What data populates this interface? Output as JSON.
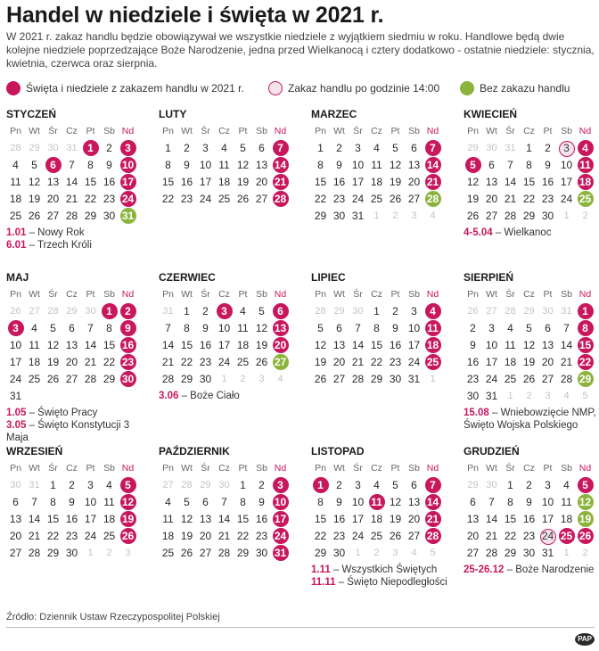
{
  "title": "Handel w niedziele i święta w 2021 r.",
  "intro": "W 2021 r. zakaz handlu będzie obowiązywał we wszystkie niedziele z wyjątkiem siedmiu w roku. Handlowe będą dwie kolejne niedziele poprzedzające Boże Narodzenie, jedna przed Wielkanocą i cztery dodatkowo - ostatnie niedziele: stycznia, kwietnia, czerwca oraz sierpnia.",
  "legend": {
    "red": "Święta i niedziele z zakazem handlu w 2021 r.",
    "ring": "Zakaz handlu po godzinie 14:00",
    "green": "Bez zakazu handlu"
  },
  "colors": {
    "red": "#c8175d",
    "green": "#8cb33c"
  },
  "weekdays": [
    "Pn",
    "Wt",
    "Śr",
    "Cz",
    "Pt",
    "Sb",
    "Nd"
  ],
  "months": [
    {
      "name": "STYCZEŃ",
      "weeks": [
        [
          "28",
          "29",
          "30",
          "31",
          "1",
          "2",
          "3"
        ],
        [
          "4",
          "5",
          "6",
          "7",
          "8",
          "9",
          "10"
        ],
        [
          "11",
          "12",
          "13",
          "14",
          "15",
          "16",
          "17"
        ],
        [
          "18",
          "19",
          "20",
          "21",
          "22",
          "23",
          "24"
        ],
        [
          "25",
          "26",
          "27",
          "28",
          "29",
          "30",
          "31"
        ]
      ],
      "states": [
        [
          "o",
          "o",
          "o",
          "o",
          "r",
          "",
          "r"
        ],
        [
          "",
          "",
          "r",
          "",
          "",
          "",
          "r"
        ],
        [
          "",
          "",
          "",
          "",
          "",
          "",
          "r"
        ],
        [
          "",
          "",
          "",
          "",
          "",
          "",
          "r"
        ],
        [
          "",
          "",
          "",
          "",
          "",
          "",
          "g"
        ]
      ],
      "notes": [
        {
          "date": "1.01",
          "text": " – Nowy Rok"
        },
        {
          "date": "6.01",
          "text": " – Trzech Króli"
        }
      ]
    },
    {
      "name": "LUTY",
      "weeks": [
        [
          "1",
          "2",
          "3",
          "4",
          "5",
          "6",
          "7"
        ],
        [
          "8",
          "9",
          "10",
          "11",
          "12",
          "13",
          "14"
        ],
        [
          "15",
          "16",
          "17",
          "18",
          "19",
          "20",
          "21"
        ],
        [
          "22",
          "23",
          "24",
          "25",
          "26",
          "27",
          "28"
        ]
      ],
      "states": [
        [
          "",
          "",
          "",
          "",
          "",
          "",
          "r"
        ],
        [
          "",
          "",
          "",
          "",
          "",
          "",
          "r"
        ],
        [
          "",
          "",
          "",
          "",
          "",
          "",
          "r"
        ],
        [
          "",
          "",
          "",
          "",
          "",
          "",
          "r"
        ]
      ],
      "notes": []
    },
    {
      "name": "MARZEC",
      "weeks": [
        [
          "1",
          "2",
          "3",
          "4",
          "5",
          "6",
          "7"
        ],
        [
          "8",
          "9",
          "10",
          "11",
          "12",
          "13",
          "14"
        ],
        [
          "15",
          "16",
          "17",
          "18",
          "19",
          "20",
          "21"
        ],
        [
          "22",
          "23",
          "24",
          "25",
          "26",
          "27",
          "28"
        ],
        [
          "29",
          "30",
          "31",
          "1",
          "2",
          "3",
          "4"
        ]
      ],
      "states": [
        [
          "",
          "",
          "",
          "",
          "",
          "",
          "r"
        ],
        [
          "",
          "",
          "",
          "",
          "",
          "",
          "r"
        ],
        [
          "",
          "",
          "",
          "",
          "",
          "",
          "r"
        ],
        [
          "",
          "",
          "",
          "",
          "",
          "",
          "g"
        ],
        [
          "",
          "",
          "",
          "o",
          "o",
          "o",
          "o"
        ]
      ],
      "notes": []
    },
    {
      "name": "KWIECIEŃ",
      "weeks": [
        [
          "29",
          "30",
          "31",
          "1",
          "2",
          "3",
          "4"
        ],
        [
          "5",
          "6",
          "7",
          "8",
          "9",
          "10",
          "11"
        ],
        [
          "12",
          "13",
          "14",
          "15",
          "16",
          "17",
          "18"
        ],
        [
          "19",
          "20",
          "21",
          "22",
          "23",
          "24",
          "25"
        ],
        [
          "26",
          "27",
          "28",
          "29",
          "30",
          "1",
          "2"
        ]
      ],
      "states": [
        [
          "o",
          "o",
          "o",
          "",
          "",
          "w",
          "r"
        ],
        [
          "r",
          "",
          "",
          "",
          "",
          "",
          "r"
        ],
        [
          "",
          "",
          "",
          "",
          "",
          "",
          "r"
        ],
        [
          "",
          "",
          "",
          "",
          "",
          "",
          "g"
        ],
        [
          "",
          "",
          "",
          "",
          "",
          "o",
          "o"
        ]
      ],
      "notes": [
        {
          "date": "4-5.04",
          "text": " – Wielkanoc"
        }
      ]
    },
    {
      "name": "MAJ",
      "weeks": [
        [
          "26",
          "27",
          "28",
          "29",
          "30",
          "1",
          "2"
        ],
        [
          "3",
          "4",
          "5",
          "6",
          "7",
          "8",
          "9"
        ],
        [
          "10",
          "11",
          "12",
          "13",
          "14",
          "15",
          "16"
        ],
        [
          "17",
          "18",
          "19",
          "20",
          "21",
          "22",
          "23"
        ],
        [
          "24",
          "25",
          "26",
          "27",
          "28",
          "29",
          "30"
        ],
        [
          "31",
          "",
          "",
          "",
          "",
          "",
          ""
        ]
      ],
      "states": [
        [
          "o",
          "o",
          "o",
          "o",
          "o",
          "r",
          "r"
        ],
        [
          "r",
          "",
          "",
          "",
          "",
          "",
          "r"
        ],
        [
          "",
          "",
          "",
          "",
          "",
          "",
          "r"
        ],
        [
          "",
          "",
          "",
          "",
          "",
          "",
          "r"
        ],
        [
          "",
          "",
          "",
          "",
          "",
          "",
          "r"
        ],
        [
          "",
          "",
          "",
          "",
          "",
          "",
          ""
        ]
      ],
      "notes": [
        {
          "date": "1.05",
          "text": " – Święto Pracy"
        },
        {
          "date": "3.05",
          "text": " – Święto Konstytucji 3 Maja"
        }
      ]
    },
    {
      "name": "CZERWIEC",
      "weeks": [
        [
          "31",
          "1",
          "2",
          "3",
          "4",
          "5",
          "6"
        ],
        [
          "7",
          "8",
          "9",
          "10",
          "11",
          "12",
          "13"
        ],
        [
          "14",
          "15",
          "16",
          "17",
          "18",
          "19",
          "20"
        ],
        [
          "21",
          "22",
          "23",
          "24",
          "25",
          "26",
          "27"
        ],
        [
          "28",
          "29",
          "30",
          "1",
          "2",
          "3",
          "4"
        ]
      ],
      "states": [
        [
          "o",
          "",
          "",
          "r",
          "",
          "",
          "r"
        ],
        [
          "",
          "",
          "",
          "",
          "",
          "",
          "r"
        ],
        [
          "",
          "",
          "",
          "",
          "",
          "",
          "r"
        ],
        [
          "",
          "",
          "",
          "",
          "",
          "",
          "g"
        ],
        [
          "",
          "",
          "",
          "o",
          "o",
          "o",
          "o"
        ]
      ],
      "notes": [
        {
          "date": "3.06",
          "text": " – Boże Ciało"
        }
      ]
    },
    {
      "name": "LIPIEC",
      "weeks": [
        [
          "28",
          "29",
          "30",
          "1",
          "2",
          "3",
          "4"
        ],
        [
          "5",
          "6",
          "7",
          "8",
          "9",
          "10",
          "11"
        ],
        [
          "12",
          "13",
          "14",
          "15",
          "16",
          "17",
          "18"
        ],
        [
          "19",
          "20",
          "21",
          "22",
          "23",
          "24",
          "25"
        ],
        [
          "26",
          "27",
          "28",
          "29",
          "30",
          "31",
          "1"
        ]
      ],
      "states": [
        [
          "o",
          "o",
          "o",
          "",
          "",
          "",
          "r"
        ],
        [
          "",
          "",
          "",
          "",
          "",
          "",
          "r"
        ],
        [
          "",
          "",
          "",
          "",
          "",
          "",
          "r"
        ],
        [
          "",
          "",
          "",
          "",
          "",
          "",
          "r"
        ],
        [
          "",
          "",
          "",
          "",
          "",
          "",
          "o"
        ]
      ],
      "notes": []
    },
    {
      "name": "SIERPIEŃ",
      "weeks": [
        [
          "26",
          "27",
          "28",
          "29",
          "30",
          "31",
          "1"
        ],
        [
          "2",
          "3",
          "4",
          "5",
          "6",
          "7",
          "8"
        ],
        [
          "9",
          "10",
          "11",
          "12",
          "13",
          "14",
          "15"
        ],
        [
          "16",
          "17",
          "18",
          "19",
          "20",
          "21",
          "22"
        ],
        [
          "23",
          "24",
          "25",
          "26",
          "27",
          "28",
          "29"
        ],
        [
          "30",
          "31",
          "1",
          "2",
          "3",
          "4",
          "5"
        ]
      ],
      "states": [
        [
          "o",
          "o",
          "o",
          "o",
          "o",
          "o",
          "r"
        ],
        [
          "",
          "",
          "",
          "",
          "",
          "",
          "r"
        ],
        [
          "",
          "",
          "",
          "",
          "",
          "",
          "r"
        ],
        [
          "",
          "",
          "",
          "",
          "",
          "",
          "r"
        ],
        [
          "",
          "",
          "",
          "",
          "",
          "",
          "g"
        ],
        [
          "",
          "",
          "o",
          "o",
          "o",
          "o",
          "o"
        ]
      ],
      "notes": [
        {
          "date": "15.08",
          "text": " – Wniebowzięcie NMP, Święto Wojska Polskiego"
        }
      ]
    },
    {
      "name": "WRZESIEŃ",
      "weeks": [
        [
          "30",
          "31",
          "1",
          "2",
          "3",
          "4",
          "5"
        ],
        [
          "6",
          "7",
          "8",
          "9",
          "10",
          "11",
          "12"
        ],
        [
          "13",
          "14",
          "15",
          "16",
          "17",
          "18",
          "19"
        ],
        [
          "20",
          "21",
          "22",
          "23",
          "24",
          "25",
          "26"
        ],
        [
          "27",
          "28",
          "29",
          "30",
          "1",
          "2",
          "3"
        ]
      ],
      "states": [
        [
          "o",
          "o",
          "",
          "",
          "",
          "",
          "r"
        ],
        [
          "",
          "",
          "",
          "",
          "",
          "",
          "r"
        ],
        [
          "",
          "",
          "",
          "",
          "",
          "",
          "r"
        ],
        [
          "",
          "",
          "",
          "",
          "",
          "",
          "r"
        ],
        [
          "",
          "",
          "",
          "",
          "o",
          "o",
          "o"
        ]
      ],
      "notes": []
    },
    {
      "name": "PAŹDZIERNIK",
      "weeks": [
        [
          "27",
          "28",
          "29",
          "30",
          "1",
          "2",
          "3"
        ],
        [
          "4",
          "5",
          "6",
          "7",
          "8",
          "9",
          "10"
        ],
        [
          "11",
          "12",
          "13",
          "14",
          "15",
          "16",
          "17"
        ],
        [
          "18",
          "19",
          "20",
          "21",
          "22",
          "23",
          "24"
        ],
        [
          "25",
          "26",
          "27",
          "28",
          "29",
          "30",
          "31"
        ]
      ],
      "states": [
        [
          "o",
          "o",
          "o",
          "o",
          "",
          "",
          "r"
        ],
        [
          "",
          "",
          "",
          "",
          "",
          "",
          "r"
        ],
        [
          "",
          "",
          "",
          "",
          "",
          "",
          "r"
        ],
        [
          "",
          "",
          "",
          "",
          "",
          "",
          "r"
        ],
        [
          "",
          "",
          "",
          "",
          "",
          "",
          "r"
        ]
      ],
      "notes": []
    },
    {
      "name": "LISTOPAD",
      "weeks": [
        [
          "1",
          "2",
          "3",
          "4",
          "5",
          "6",
          "7"
        ],
        [
          "8",
          "9",
          "10",
          "11",
          "12",
          "13",
          "14"
        ],
        [
          "15",
          "16",
          "17",
          "18",
          "19",
          "20",
          "21"
        ],
        [
          "22",
          "23",
          "24",
          "25",
          "26",
          "27",
          "28"
        ],
        [
          "29",
          "30",
          "1",
          "2",
          "3",
          "4",
          "5"
        ]
      ],
      "states": [
        [
          "r",
          "",
          "",
          "",
          "",
          "",
          "r"
        ],
        [
          "",
          "",
          "",
          "r",
          "",
          "",
          "r"
        ],
        [
          "",
          "",
          "",
          "",
          "",
          "",
          "r"
        ],
        [
          "",
          "",
          "",
          "",
          "",
          "",
          "r"
        ],
        [
          "",
          "",
          "o",
          "o",
          "o",
          "o",
          "o"
        ]
      ],
      "notes": [
        {
          "date": "1.11",
          "text": " – Wszystkich Świętych"
        },
        {
          "date": "11.11",
          "text": " – Święto Niepodległości"
        }
      ]
    },
    {
      "name": "GRUDZIEŃ",
      "weeks": [
        [
          "29",
          "30",
          "1",
          "2",
          "3",
          "4",
          "5"
        ],
        [
          "6",
          "7",
          "8",
          "9",
          "10",
          "11",
          "12"
        ],
        [
          "13",
          "14",
          "15",
          "16",
          "17",
          "18",
          "19"
        ],
        [
          "20",
          "21",
          "22",
          "23",
          "24",
          "25",
          "26"
        ],
        [
          "27",
          "28",
          "29",
          "30",
          "31",
          "1",
          "2"
        ]
      ],
      "states": [
        [
          "o",
          "o",
          "",
          "",
          "",
          "",
          "r"
        ],
        [
          "",
          "",
          "",
          "",
          "",
          "",
          "g"
        ],
        [
          "",
          "",
          "",
          "",
          "",
          "",
          "g"
        ],
        [
          "",
          "",
          "",
          "",
          "w",
          "r",
          "r"
        ],
        [
          "",
          "",
          "",
          "",
          "",
          "o",
          "o"
        ]
      ],
      "notes": [
        {
          "date": "25-26.12",
          "text": " – Boże Narodzenie"
        }
      ]
    }
  ],
  "source": "Źródło: Dziennik Ustaw Rzeczypospolitej Polskiej",
  "logo": "PAP"
}
